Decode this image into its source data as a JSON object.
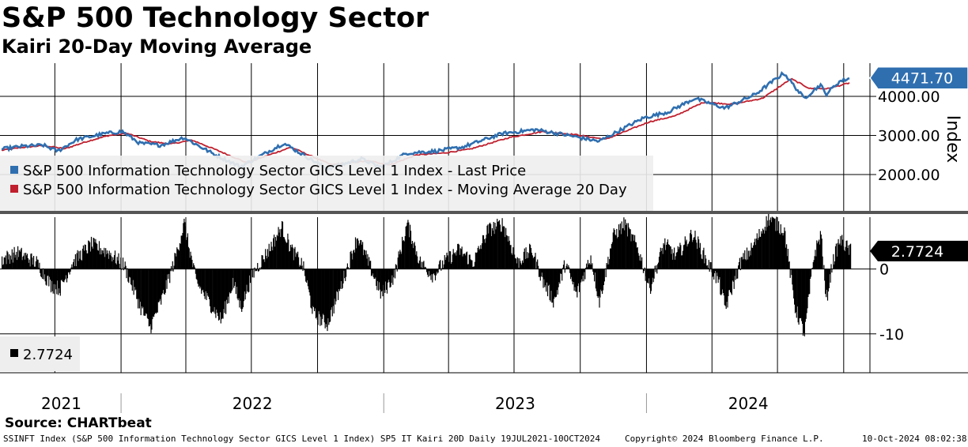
{
  "title": "S&P 500 Technology Sector",
  "subtitle": "Kairi 20-Day Moving Average",
  "source": "Source: CHARTbeat",
  "footer": {
    "left": "SSINFT Index (S&P 500 Information Technology Sector GICS Level 1 Index) SP5 IT Kairi 20D  Daily 19JUL2021-10OCT2024",
    "center": "Copyright© 2024 Bloomberg Finance L.P.",
    "right": "10-Oct-2024 08:02:38"
  },
  "colors": {
    "price": "#2f6fb0",
    "moving_average": "#c0202e",
    "kairi": "#000000",
    "grid": "#000000",
    "legend_bg": "#eeeeee"
  },
  "chart_data": [
    {
      "type": "line",
      "yaxis_title": "Index",
      "yticks": [
        "2000.00",
        "3000.00",
        "4000.00"
      ],
      "ylim": [
        1050,
        4850
      ],
      "last_value_label": "4471.70",
      "legend": [
        {
          "name": "S&P 500 Information Technology Sector GICS Level 1 Index - Last Price",
          "color": "#2f6fb0"
        },
        {
          "name": "S&P 500 Information Technology Sector GICS Level 1 Index - Moving Average 20 Day",
          "color": "#c0202e"
        }
      ],
      "x_year_labels": [
        "2021",
        "2022",
        "2023",
        "2024"
      ],
      "x_range": [
        "2021-07-19",
        "2024-10-10"
      ],
      "series": [
        {
          "name": "S&P 500 Information Technology Sector GICS Level 1 Index - Last Price",
          "points": [
            [
              "2021-07-19",
              2650
            ],
            [
              "2021-08-15",
              2720
            ],
            [
              "2021-09-15",
              2750
            ],
            [
              "2021-10-05",
              2600
            ],
            [
              "2021-11-01",
              2900
            ],
            [
              "2021-12-10",
              3050
            ],
            [
              "2022-01-03",
              3100
            ],
            [
              "2022-01-27",
              2800
            ],
            [
              "2022-02-25",
              2750
            ],
            [
              "2022-03-29",
              2950
            ],
            [
              "2022-05-12",
              2500
            ],
            [
              "2022-06-16",
              2200
            ],
            [
              "2022-08-15",
              2800
            ],
            [
              "2022-10-14",
              2150
            ],
            [
              "2022-12-01",
              2400
            ],
            [
              "2022-12-28",
              2180
            ],
            [
              "2023-02-02",
              2550
            ],
            [
              "2023-03-15",
              2600
            ],
            [
              "2023-04-20",
              2700
            ],
            [
              "2023-06-15",
              3050
            ],
            [
              "2023-07-31",
              3150
            ],
            [
              "2023-09-15",
              3000
            ],
            [
              "2023-10-27",
              2850
            ],
            [
              "2023-12-28",
              3450
            ],
            [
              "2024-01-31",
              3600
            ],
            [
              "2024-03-08",
              3950
            ],
            [
              "2024-04-19",
              3700
            ],
            [
              "2024-05-31",
              4050
            ],
            [
              "2024-07-10",
              4600
            ],
            [
              "2024-08-07",
              3950
            ],
            [
              "2024-08-30",
              4300
            ],
            [
              "2024-09-06",
              4050
            ],
            [
              "2024-09-25",
              4380
            ],
            [
              "2024-10-10",
              4471.7
            ]
          ]
        },
        {
          "name": "S&P 500 Information Technology Sector GICS Level 1 Index - Moving Average 20 Day",
          "points": [
            [
              "2021-07-19",
              2620
            ],
            [
              "2021-08-15",
              2690
            ],
            [
              "2021-09-15",
              2740
            ],
            [
              "2021-10-15",
              2660
            ],
            [
              "2021-11-15",
              2850
            ],
            [
              "2021-12-15",
              3000
            ],
            [
              "2022-01-10",
              3050
            ],
            [
              "2022-02-10",
              2850
            ],
            [
              "2022-03-10",
              2780
            ],
            [
              "2022-04-10",
              2880
            ],
            [
              "2022-05-20",
              2580
            ],
            [
              "2022-06-25",
              2300
            ],
            [
              "2022-08-25",
              2700
            ],
            [
              "2022-10-20",
              2250
            ],
            [
              "2022-12-10",
              2350
            ],
            [
              "2023-01-10",
              2250
            ],
            [
              "2023-02-15",
              2500
            ],
            [
              "2023-03-25",
              2550
            ],
            [
              "2023-05-01",
              2650
            ],
            [
              "2023-06-25",
              2950
            ],
            [
              "2023-08-10",
              3100
            ],
            [
              "2023-09-25",
              3020
            ],
            [
              "2023-11-05",
              2900
            ],
            [
              "2024-01-05",
              3350
            ],
            [
              "2024-02-10",
              3500
            ],
            [
              "2024-03-20",
              3850
            ],
            [
              "2024-04-30",
              3800
            ],
            [
              "2024-06-10",
              3950
            ],
            [
              "2024-07-20",
              4450
            ],
            [
              "2024-08-15",
              4200
            ],
            [
              "2024-09-10",
              4200
            ],
            [
              "2024-10-10",
              4350
            ]
          ]
        }
      ]
    },
    {
      "type": "bar",
      "yticks": [
        "0",
        "-10"
      ],
      "ylim": [
        -16,
        8
      ],
      "last_value_label": "2.7724",
      "legend": [
        {
          "name": "2.7724",
          "color": "#000000"
        }
      ],
      "x_range": [
        "2021-07-19",
        "2024-10-10"
      ],
      "anchors": [
        [
          "2021-07-19",
          1.5
        ],
        [
          "2021-08-10",
          2.5
        ],
        [
          "2021-09-05",
          1.0
        ],
        [
          "2021-09-25",
          -2.5
        ],
        [
          "2021-10-08",
          -3.0
        ],
        [
          "2021-10-25",
          1.0
        ],
        [
          "2021-11-20",
          3.8
        ],
        [
          "2021-12-15",
          2.5
        ],
        [
          "2022-01-05",
          0.5
        ],
        [
          "2022-01-28",
          -6.0
        ],
        [
          "2022-02-10",
          -9.0
        ],
        [
          "2022-02-25",
          -5.0
        ],
        [
          "2022-03-15",
          1.0
        ],
        [
          "2022-03-29",
          7.0
        ],
        [
          "2022-04-15",
          -2.0
        ],
        [
          "2022-05-02",
          -5.0
        ],
        [
          "2022-05-20",
          -8.0
        ],
        [
          "2022-06-05",
          -2.0
        ],
        [
          "2022-06-16",
          -6.0
        ],
        [
          "2022-07-01",
          -1.0
        ],
        [
          "2022-07-25",
          3.0
        ],
        [
          "2022-08-12",
          6.5
        ],
        [
          "2022-08-25",
          3.0
        ],
        [
          "2022-09-10",
          0.5
        ],
        [
          "2022-09-25",
          -7.0
        ],
        [
          "2022-10-14",
          -8.5
        ],
        [
          "2022-11-01",
          -3.0
        ],
        [
          "2022-11-25",
          5.0
        ],
        [
          "2022-12-10",
          1.0
        ],
        [
          "2022-12-28",
          -4.0
        ],
        [
          "2023-01-15",
          -1.0
        ],
        [
          "2023-02-02",
          7.0
        ],
        [
          "2023-02-20",
          1.0
        ],
        [
          "2023-03-10",
          -1.0
        ],
        [
          "2023-03-25",
          1.0
        ],
        [
          "2023-04-15",
          3.0
        ],
        [
          "2023-05-05",
          1.0
        ],
        [
          "2023-05-25",
          6.0
        ],
        [
          "2023-06-15",
          7.0
        ],
        [
          "2023-07-05",
          1.0
        ],
        [
          "2023-07-25",
          3.0
        ],
        [
          "2023-08-10",
          -2.0
        ],
        [
          "2023-08-25",
          -5.0
        ],
        [
          "2023-09-10",
          1.0
        ],
        [
          "2023-09-25",
          -4.0
        ],
        [
          "2023-10-15",
          2.0
        ],
        [
          "2023-10-27",
          -5.0
        ],
        [
          "2023-11-15",
          5.0
        ],
        [
          "2023-12-01",
          7.0
        ],
        [
          "2023-12-20",
          3.0
        ],
        [
          "2024-01-05",
          -3.0
        ],
        [
          "2024-01-25",
          4.0
        ],
        [
          "2024-02-10",
          2.0
        ],
        [
          "2024-03-05",
          5.5
        ],
        [
          "2024-03-25",
          1.0
        ],
        [
          "2024-04-10",
          -2.0
        ],
        [
          "2024-04-19",
          -6.0
        ],
        [
          "2024-05-10",
          1.0
        ],
        [
          "2024-05-25",
          3.0
        ],
        [
          "2024-06-18",
          7.8
        ],
        [
          "2024-07-10",
          6.0
        ],
        [
          "2024-07-25",
          -6.0
        ],
        [
          "2024-08-07",
          -10.0
        ],
        [
          "2024-08-20",
          2.0
        ],
        [
          "2024-08-30",
          5.5
        ],
        [
          "2024-09-06",
          -5.0
        ],
        [
          "2024-09-15",
          1.0
        ],
        [
          "2024-09-25",
          4.5
        ],
        [
          "2024-10-10",
          2.7724
        ]
      ]
    }
  ]
}
